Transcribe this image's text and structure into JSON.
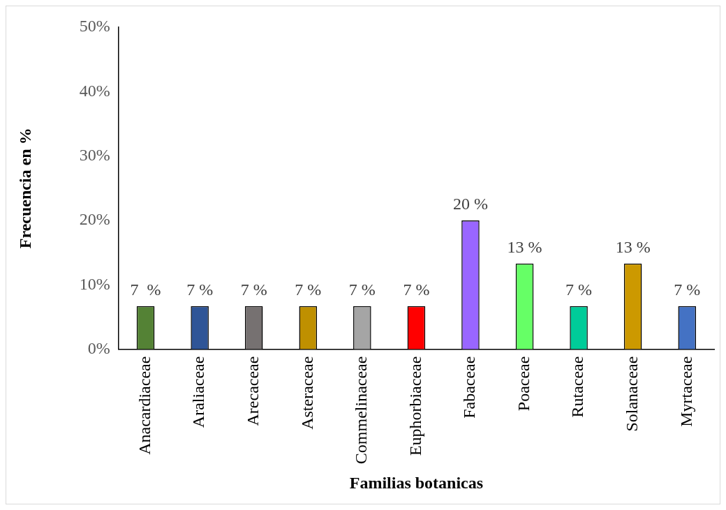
{
  "chart_data": {
    "type": "bar",
    "xlabel": "Familias botanicas",
    "ylabel": "Frecuencia en %",
    "categories": [
      "Anacardiaceae",
      "Araliaceae",
      "Arecaceae",
      "Asteraceae",
      "Commelinaceae",
      "Euphorbiaceae",
      "Fabaceae",
      "Poaceae",
      "Rutaceae",
      "Solanaceae",
      "Myrtaceae"
    ],
    "values": [
      6.7,
      6.7,
      6.7,
      6.7,
      6.7,
      6.7,
      20,
      13.3,
      6.7,
      13.3,
      6.7
    ],
    "value_labels": [
      "7  %",
      "7 %",
      "7 %",
      "7 %",
      "7 %",
      "7 %",
      "20 %",
      "13 %",
      "7 %",
      "13 %",
      "7 %"
    ],
    "colors": [
      "#548235",
      "#2f5597",
      "#767171",
      "#bf9000",
      "#a5a5a5",
      "#ff0000",
      "#9966ff",
      "#66ff66",
      "#00cc99",
      "#cc9900",
      "#4472c4"
    ],
    "ylim": [
      0,
      50
    ],
    "yticks": [
      {
        "value": 0,
        "label": "0%"
      },
      {
        "value": 10,
        "label": "10%"
      },
      {
        "value": 20,
        "label": "20%"
      },
      {
        "value": 30,
        "label": "30%"
      },
      {
        "value": 40,
        "label": "40%"
      },
      {
        "value": 50,
        "label": "50%"
      }
    ],
    "grid": false,
    "legend": false
  }
}
